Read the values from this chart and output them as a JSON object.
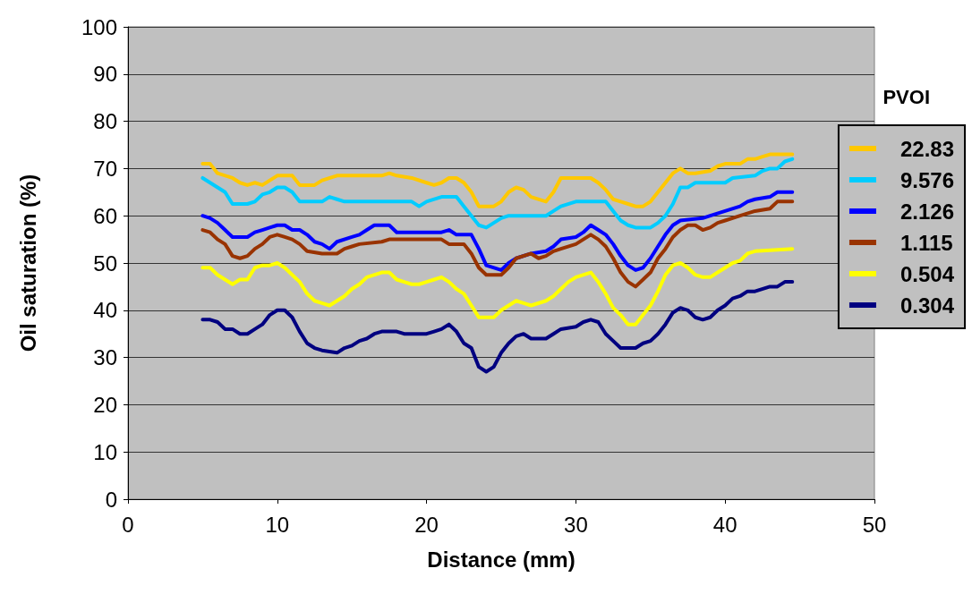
{
  "chart_data": {
    "type": "line",
    "xlabel": "Distance (mm)",
    "ylabel": "Oil saturation (%)",
    "legend_title": "PVOI",
    "xlim": [
      0,
      50
    ],
    "xticks": [
      0,
      10,
      20,
      30,
      40,
      50
    ],
    "ylim": [
      0,
      100
    ],
    "yticks": [
      0,
      10,
      20,
      30,
      40,
      50,
      60,
      70,
      80,
      90,
      100
    ],
    "grid": "y",
    "legend": "right",
    "marker": "none",
    "line_style": "solid",
    "series": [
      {
        "name": "22.83",
        "color": "#ffc800",
        "x": [
          5,
          5.5,
          6,
          7,
          7.5,
          8,
          8.5,
          9,
          9.5,
          10,
          11,
          11.5,
          12.5,
          13,
          14,
          15,
          16,
          17,
          17.5,
          18,
          19,
          20,
          20.5,
          21,
          21.5,
          22,
          22.5,
          23,
          23.5,
          24.5,
          25,
          25.5,
          26,
          26.5,
          27,
          28,
          28.5,
          29,
          30,
          31,
          31.5,
          32,
          32.5,
          33,
          33.5,
          34,
          34.5,
          35,
          35.5,
          36,
          36.5,
          37,
          37.5,
          38,
          39,
          39.5,
          40,
          41,
          41.5,
          42,
          42.5,
          43,
          44.5
        ],
        "values": [
          71,
          71,
          69,
          68,
          67,
          66.5,
          67,
          66.5,
          67.5,
          68.5,
          68.5,
          66.5,
          66.5,
          67.5,
          68.5,
          68.5,
          68.5,
          68.5,
          69,
          68.5,
          68,
          67,
          66.5,
          67,
          68,
          68,
          67,
          65,
          62,
          62,
          63,
          65,
          66,
          65.5,
          64,
          63,
          65,
          68,
          68,
          68,
          67,
          65.5,
          63.5,
          63,
          62.5,
          62,
          62,
          63,
          65,
          67,
          69,
          70,
          69,
          69,
          69.5,
          70.5,
          71,
          71,
          72,
          72,
          72.5,
          73,
          73
        ]
      },
      {
        "name": "9.576",
        "color": "#00ccff",
        "x": [
          5,
          6,
          6.5,
          7,
          8,
          8.5,
          9,
          9.5,
          10,
          10.5,
          11,
          11.5,
          12,
          13,
          13.5,
          14,
          14.5,
          18,
          19,
          19.5,
          20,
          21,
          22,
          22.5,
          23,
          23.5,
          24,
          24.5,
          25,
          25.5,
          28,
          28.5,
          29,
          30,
          32,
          32.5,
          33,
          33.5,
          34,
          35,
          35.5,
          36,
          36.5,
          37,
          37.5,
          38,
          40,
          40.5,
          42,
          42.5,
          43,
          43.5,
          44,
          44.5
        ],
        "values": [
          68,
          66,
          65,
          62.5,
          62.5,
          63,
          64.5,
          65,
          66,
          66,
          65,
          63,
          63,
          63,
          64,
          63.5,
          63,
          63,
          63,
          62,
          63,
          64,
          64,
          62,
          60,
          58,
          57.5,
          58.5,
          59.5,
          60,
          60,
          61,
          62,
          63,
          63,
          61,
          59,
          58,
          57.5,
          57.5,
          58.5,
          60,
          62.5,
          66,
          66,
          67,
          67,
          68,
          68.5,
          69.5,
          70,
          70,
          71.5,
          72
        ]
      },
      {
        "name": "2.126",
        "color": "#0000ff",
        "x": [
          5,
          5.5,
          6,
          6.5,
          7,
          8,
          8.5,
          9,
          9.5,
          10,
          10.5,
          11,
          11.5,
          12,
          12.5,
          13,
          13.5,
          14,
          15,
          15.5,
          16,
          16.5,
          17.5,
          18,
          21,
          21.5,
          22,
          23,
          23.5,
          24,
          25,
          25.5,
          26,
          27,
          28,
          28.5,
          29,
          30,
          30.5,
          31,
          31.5,
          32,
          32.5,
          33,
          33.5,
          34,
          34.5,
          35,
          35.5,
          36,
          36.5,
          37,
          38.5,
          39,
          40,
          41,
          41.5,
          42,
          43,
          43.5,
          44.5
        ],
        "values": [
          60,
          59.5,
          58.5,
          57,
          55.5,
          55.5,
          56.5,
          57,
          57.5,
          58,
          58,
          57,
          57,
          56,
          54.5,
          54,
          53,
          54.5,
          55.5,
          56,
          57,
          58,
          58,
          56.5,
          56.5,
          57,
          56,
          56,
          53,
          49.5,
          48.5,
          50,
          51,
          52,
          52.5,
          53.5,
          55,
          55.5,
          56.5,
          58,
          57,
          56,
          54,
          51.5,
          49.5,
          48.5,
          49,
          51,
          53.5,
          56,
          58,
          59,
          59.5,
          60,
          61,
          62,
          63,
          63.5,
          64,
          65,
          65
        ]
      },
      {
        "name": "1.115",
        "color": "#993300",
        "x": [
          5,
          5.5,
          6,
          6.5,
          7,
          7.5,
          8,
          8.5,
          9,
          9.5,
          10,
          10.5,
          11,
          11.5,
          12,
          13,
          14,
          14.5,
          15,
          15.5,
          17,
          17.5,
          21,
          21.5,
          22.5,
          23,
          23.5,
          24,
          25,
          25.5,
          26,
          27,
          27.5,
          28,
          28.5,
          29,
          30,
          30.5,
          31,
          31.5,
          32,
          32.5,
          33,
          33.5,
          34,
          34.5,
          35,
          35.5,
          36,
          36.5,
          37,
          37.5,
          38,
          38.5,
          39,
          39.5,
          40,
          41,
          42,
          43,
          43.5,
          44.5
        ],
        "values": [
          57,
          56.5,
          55,
          54,
          51.5,
          51,
          51.5,
          53,
          54,
          55.5,
          56,
          55.5,
          55,
          54,
          52.5,
          52,
          52,
          53,
          53.5,
          54,
          54.5,
          55,
          55,
          54,
          54,
          52,
          49,
          47.5,
          47.5,
          49,
          51,
          52,
          51,
          51.5,
          52.5,
          53,
          54,
          55,
          56,
          55,
          53.5,
          51,
          48,
          46,
          45,
          46.5,
          48,
          51,
          53,
          55.5,
          57,
          58,
          58,
          57,
          57.5,
          58.5,
          59,
          60,
          61,
          61.5,
          63,
          63
        ]
      },
      {
        "name": "0.504",
        "color": "#ffff00",
        "x": [
          5,
          5.5,
          6,
          7,
          7.5,
          8,
          8.5,
          9,
          9.5,
          10,
          10.5,
          11,
          11.5,
          12,
          12.5,
          13,
          13.5,
          14,
          14.5,
          15,
          15.5,
          16,
          17,
          17.5,
          18,
          18.5,
          19,
          19.5,
          20,
          20.5,
          21,
          21.5,
          22,
          22.5,
          23,
          23.5,
          24.5,
          25,
          25.5,
          26,
          26.5,
          27,
          28,
          28.5,
          29,
          29.5,
          30,
          31,
          31.5,
          32,
          32.5,
          33,
          33.5,
          34,
          34.5,
          35,
          35.5,
          36,
          36.5,
          37,
          37.5,
          38,
          38.5,
          39,
          39.5,
          40,
          40.5,
          41,
          41.5,
          42,
          44.5
        ],
        "values": [
          49,
          49,
          47.5,
          45.5,
          46.5,
          46.5,
          49,
          49.5,
          49.5,
          50,
          49,
          47.5,
          46,
          43.5,
          42,
          41.5,
          41,
          42,
          43,
          44.5,
          45.5,
          47,
          48,
          48,
          46.5,
          46,
          45.5,
          45.5,
          46,
          46.5,
          47,
          46,
          44.5,
          43.5,
          41,
          38.5,
          38.5,
          40,
          41,
          42,
          41.5,
          41,
          42,
          43,
          44.5,
          46,
          47,
          48,
          46,
          43.5,
          40.5,
          39,
          37,
          37,
          39,
          41,
          44,
          47.5,
          49.5,
          50,
          49,
          47.5,
          47,
          47,
          48,
          49,
          50,
          50.5,
          52,
          52.5,
          53
        ]
      },
      {
        "name": "0.304",
        "color": "#000080",
        "x": [
          5,
          5.5,
          6,
          6.5,
          7,
          7.5,
          8,
          8.5,
          9,
          9.5,
          10,
          10.5,
          11,
          11.5,
          12,
          12.5,
          13,
          14,
          14.5,
          15,
          15.5,
          16,
          16.5,
          17,
          17.5,
          18,
          18.5,
          20,
          20.5,
          21,
          21.5,
          22,
          22.5,
          23,
          23.5,
          24,
          24.5,
          25,
          25.5,
          26,
          26.5,
          27,
          28,
          28.5,
          29,
          30,
          30.5,
          31,
          31.5,
          32,
          32.5,
          33,
          34,
          34.5,
          35,
          35.5,
          36,
          36.5,
          37,
          37.5,
          38,
          38.5,
          39,
          39.5,
          40,
          40.5,
          41,
          41.5,
          42,
          43,
          43.5,
          44,
          44.5
        ],
        "values": [
          38,
          38,
          37.5,
          36,
          36,
          35,
          35,
          36,
          37,
          39,
          40,
          40,
          38.5,
          35.5,
          33,
          32,
          31.5,
          31,
          32,
          32.5,
          33.5,
          34,
          35,
          35.5,
          35.5,
          35.5,
          35,
          35,
          35.5,
          36,
          37,
          35.5,
          33,
          32,
          28,
          27,
          28,
          31,
          33,
          34.5,
          35,
          34,
          34,
          35,
          36,
          36.5,
          37.5,
          38,
          37.5,
          35,
          33.5,
          32,
          32,
          33,
          33.5,
          35,
          37,
          39.5,
          40.5,
          40,
          38.5,
          38,
          38.5,
          40,
          41,
          42.5,
          43,
          44,
          44,
          45,
          45,
          46,
          46
        ]
      }
    ]
  }
}
